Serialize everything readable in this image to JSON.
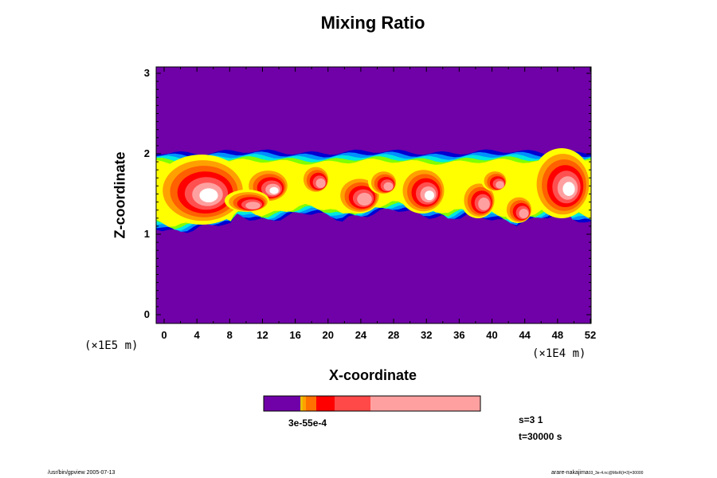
{
  "chart_data": {
    "type": "heatmap",
    "title": "Mixing Ratio",
    "xlabel": "X-coordinate",
    "ylabel": "Z-coordinate",
    "x_multiplier": "(×1E4 m)",
    "y_multiplier": "(×1E5 m)",
    "xlim": [
      0,
      52
    ],
    "ylim": [
      0,
      3
    ],
    "x_ticks": [
      "0",
      "4",
      "8",
      "12",
      "16",
      "20",
      "24",
      "28",
      "32",
      "36",
      "40",
      "44",
      "48",
      "52"
    ],
    "y_ticks": [
      "0",
      "1",
      "2",
      "3"
    ],
    "background_level_color": "#7000a8",
    "cloud_layer": {
      "base_z": 1.2,
      "top_z": 2.05,
      "color_order": [
        "#7000a8",
        "#0000d0",
        "#0090ff",
        "#00e8e0",
        "#80ff00",
        "#ffff00",
        "#ffa000",
        "#ff6000",
        "#ff0000",
        "#ff5050",
        "#ffa0a0",
        "#ffffff"
      ]
    },
    "colorbar": {
      "colors": [
        "#7000a8",
        "#e8c000",
        "#ffa000",
        "#ff7000",
        "#ff0000",
        "#ff4848",
        "#ffa0a0"
      ],
      "tick_labels_overlapping": "3e-55e-4"
    },
    "step_text": "s=3 1",
    "time_text": "t=30000 s"
  },
  "footer": {
    "left": "/usr/bin/gpview 2005-07-13",
    "right_main": "arare-nakajima",
    "right_sub": "03_3e-4.nc@MixR(t=3)=30000"
  }
}
